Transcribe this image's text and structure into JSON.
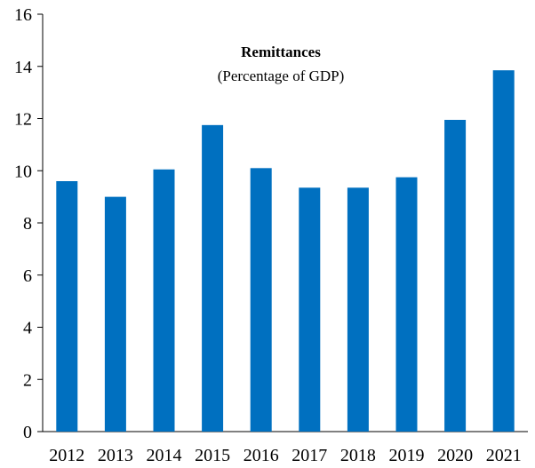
{
  "chart_data": {
    "type": "bar",
    "title": "Remittances",
    "subtitle": "(Percentage of GDP)",
    "categories": [
      "2012",
      "2013",
      "2014",
      "2015",
      "2016",
      "2017",
      "2018",
      "2019",
      "2020",
      "2021"
    ],
    "values": [
      9.6,
      9.0,
      10.05,
      11.75,
      10.1,
      9.35,
      9.35,
      9.75,
      11.95,
      13.85
    ],
    "ylim": [
      0,
      16
    ],
    "yticks": [
      0,
      2,
      4,
      6,
      8,
      10,
      12,
      14,
      16
    ],
    "xlabel": "",
    "ylabel": "",
    "grid": false,
    "bar_color": "#0070C0"
  }
}
